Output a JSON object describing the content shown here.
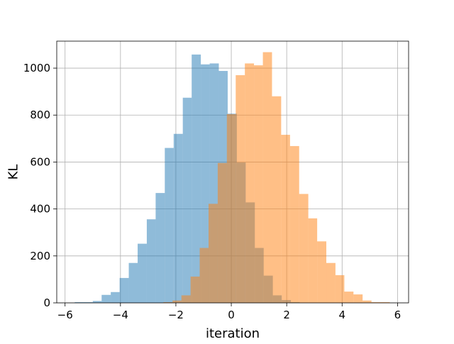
{
  "chart_data": {
    "type": "histogram",
    "title": "",
    "xlabel": "iteration",
    "ylabel": "KL",
    "xlim": [
      -6.3,
      6.4
    ],
    "ylim": [
      0,
      1115
    ],
    "xticks": [
      -6,
      -4,
      -2,
      0,
      2,
      4,
      6
    ],
    "xtick_labels": [
      "−6",
      "−4",
      "−2",
      "0",
      "2",
      "4",
      "6"
    ],
    "yticks": [
      0,
      200,
      400,
      600,
      800,
      1000
    ],
    "ytick_labels": [
      "0",
      "200",
      "400",
      "600",
      "800",
      "1000"
    ],
    "grid": true,
    "legend": "none",
    "series": [
      {
        "color": "#1f77b4",
        "alpha": 0.5,
        "bins": [
          {
            "x0": -5.65,
            "x1": -5.33,
            "count": 3
          },
          {
            "x0": -5.33,
            "x1": -5.0,
            "count": 3
          },
          {
            "x0": -5.0,
            "x1": -4.68,
            "count": 8
          },
          {
            "x0": -4.68,
            "x1": -4.35,
            "count": 34
          },
          {
            "x0": -4.35,
            "x1": -4.03,
            "count": 46
          },
          {
            "x0": -4.03,
            "x1": -3.7,
            "count": 106
          },
          {
            "x0": -3.7,
            "x1": -3.38,
            "count": 170
          },
          {
            "x0": -3.38,
            "x1": -3.05,
            "count": 252
          },
          {
            "x0": -3.05,
            "x1": -2.73,
            "count": 356
          },
          {
            "x0": -2.73,
            "x1": -2.4,
            "count": 468
          },
          {
            "x0": -2.4,
            "x1": -2.08,
            "count": 660
          },
          {
            "x0": -2.08,
            "x1": -1.75,
            "count": 720
          },
          {
            "x0": -1.75,
            "x1": -1.43,
            "count": 874
          },
          {
            "x0": -1.43,
            "x1": -1.1,
            "count": 1058
          },
          {
            "x0": -1.1,
            "x1": -0.78,
            "count": 1016
          },
          {
            "x0": -0.78,
            "x1": -0.45,
            "count": 1020
          },
          {
            "x0": -0.45,
            "x1": -0.13,
            "count": 988
          },
          {
            "x0": -0.13,
            "x1": 0.2,
            "count": 806
          },
          {
            "x0": 0.2,
            "x1": 0.52,
            "count": 598
          },
          {
            "x0": 0.52,
            "x1": 0.85,
            "count": 428
          },
          {
            "x0": 0.85,
            "x1": 1.17,
            "count": 234
          },
          {
            "x0": 1.17,
            "x1": 1.5,
            "count": 116
          },
          {
            "x0": 1.5,
            "x1": 1.82,
            "count": 32
          },
          {
            "x0": 1.82,
            "x1": 2.15,
            "count": 12
          },
          {
            "x0": 2.15,
            "x1": 2.47,
            "count": 3
          }
        ]
      },
      {
        "color": "#ff7f0e",
        "alpha": 0.5,
        "bins": [
          {
            "x0": -2.45,
            "x1": -2.12,
            "count": 3
          },
          {
            "x0": -2.12,
            "x1": -1.8,
            "count": 10
          },
          {
            "x0": -1.8,
            "x1": -1.47,
            "count": 32
          },
          {
            "x0": -1.47,
            "x1": -1.14,
            "count": 112
          },
          {
            "x0": -1.14,
            "x1": -0.82,
            "count": 234
          },
          {
            "x0": -0.82,
            "x1": -0.49,
            "count": 422
          },
          {
            "x0": -0.49,
            "x1": -0.16,
            "count": 596
          },
          {
            "x0": -0.16,
            "x1": 0.16,
            "count": 804
          },
          {
            "x0": 0.16,
            "x1": 0.49,
            "count": 970
          },
          {
            "x0": 0.49,
            "x1": 0.82,
            "count": 1020
          },
          {
            "x0": 0.82,
            "x1": 1.14,
            "count": 1012
          },
          {
            "x0": 1.14,
            "x1": 1.47,
            "count": 1068
          },
          {
            "x0": 1.47,
            "x1": 1.8,
            "count": 880
          },
          {
            "x0": 1.8,
            "x1": 2.12,
            "count": 716
          },
          {
            "x0": 2.12,
            "x1": 2.45,
            "count": 668
          },
          {
            "x0": 2.45,
            "x1": 2.78,
            "count": 464
          },
          {
            "x0": 2.78,
            "x1": 3.1,
            "count": 360
          },
          {
            "x0": 3.1,
            "x1": 3.43,
            "count": 262
          },
          {
            "x0": 3.43,
            "x1": 3.76,
            "count": 170
          },
          {
            "x0": 3.76,
            "x1": 4.08,
            "count": 118
          },
          {
            "x0": 4.08,
            "x1": 4.41,
            "count": 48
          },
          {
            "x0": 4.41,
            "x1": 4.74,
            "count": 36
          },
          {
            "x0": 4.74,
            "x1": 5.06,
            "count": 10
          },
          {
            "x0": 5.06,
            "x1": 5.39,
            "count": 3
          },
          {
            "x0": 5.39,
            "x1": 5.72,
            "count": 3
          }
        ]
      }
    ]
  }
}
